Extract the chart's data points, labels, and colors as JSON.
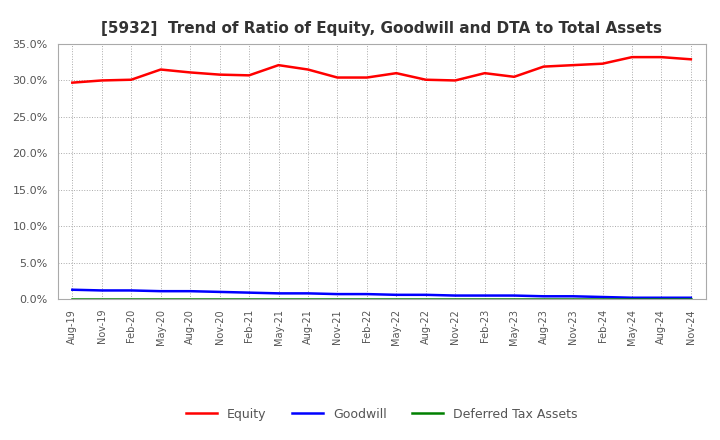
{
  "title": "[5932]  Trend of Ratio of Equity, Goodwill and DTA to Total Assets",
  "x_labels": [
    "Aug-19",
    "Nov-19",
    "Feb-20",
    "May-20",
    "Aug-20",
    "Nov-20",
    "Feb-21",
    "May-21",
    "Aug-21",
    "Nov-21",
    "Feb-22",
    "May-22",
    "Aug-22",
    "Nov-22",
    "Feb-23",
    "May-23",
    "Aug-23",
    "Nov-23",
    "Feb-24",
    "May-24",
    "Aug-24",
    "Nov-24"
  ],
  "equity": [
    29.7,
    30.0,
    30.1,
    31.5,
    31.1,
    30.8,
    30.7,
    32.1,
    31.5,
    30.4,
    30.4,
    31.0,
    30.1,
    30.0,
    31.0,
    30.5,
    31.9,
    32.1,
    32.3,
    33.2,
    33.2,
    32.9
  ],
  "goodwill": [
    1.3,
    1.2,
    1.2,
    1.1,
    1.1,
    1.0,
    0.9,
    0.8,
    0.8,
    0.7,
    0.7,
    0.6,
    0.6,
    0.5,
    0.5,
    0.5,
    0.4,
    0.4,
    0.3,
    0.2,
    0.2,
    0.2
  ],
  "dta": [
    0.05,
    0.05,
    0.05,
    0.05,
    0.05,
    0.05,
    0.05,
    0.05,
    0.05,
    0.05,
    0.05,
    0.05,
    0.05,
    0.05,
    0.05,
    0.05,
    0.05,
    0.05,
    0.05,
    0.05,
    0.05,
    0.05
  ],
  "equity_color": "#ff0000",
  "goodwill_color": "#0000ff",
  "dta_color": "#008000",
  "ylim": [
    0.0,
    35.0
  ],
  "yticks": [
    0.0,
    5.0,
    10.0,
    15.0,
    20.0,
    25.0,
    30.0,
    35.0
  ],
  "background_color": "#ffffff",
  "plot_bg_color": "#ffffff",
  "grid_color": "#aaaaaa",
  "title_fontsize": 11,
  "legend_labels": [
    "Equity",
    "Goodwill",
    "Deferred Tax Assets"
  ]
}
